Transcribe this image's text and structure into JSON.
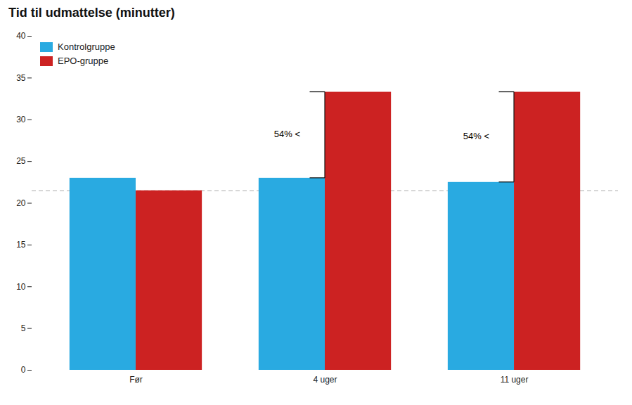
{
  "chart_data": {
    "type": "bar",
    "title": "Tid til udmattelse (minutter)",
    "categories": [
      "Før",
      "4 uger",
      "11 uger"
    ],
    "series": [
      {
        "name": "Kontrolgruppe",
        "color": "#29aae1",
        "values": [
          23.0,
          23.0,
          22.5
        ]
      },
      {
        "name": "EPO-gruppe",
        "color": "#cc2222",
        "values": [
          21.5,
          33.3,
          33.3
        ]
      }
    ],
    "ylim": [
      0,
      40
    ],
    "yticks": [
      0,
      5,
      10,
      15,
      20,
      25,
      30,
      35,
      40
    ],
    "grid": false,
    "legend": "upper left",
    "hline": {
      "y": 21.5,
      "color": "#aaaaaa",
      "line_style": "dashed"
    },
    "annotations": [
      {
        "text": "54% <",
        "category": "4 uger",
        "color": "#111111"
      },
      {
        "text": "54% <",
        "category": "11 uger",
        "color": "#111111"
      }
    ]
  }
}
